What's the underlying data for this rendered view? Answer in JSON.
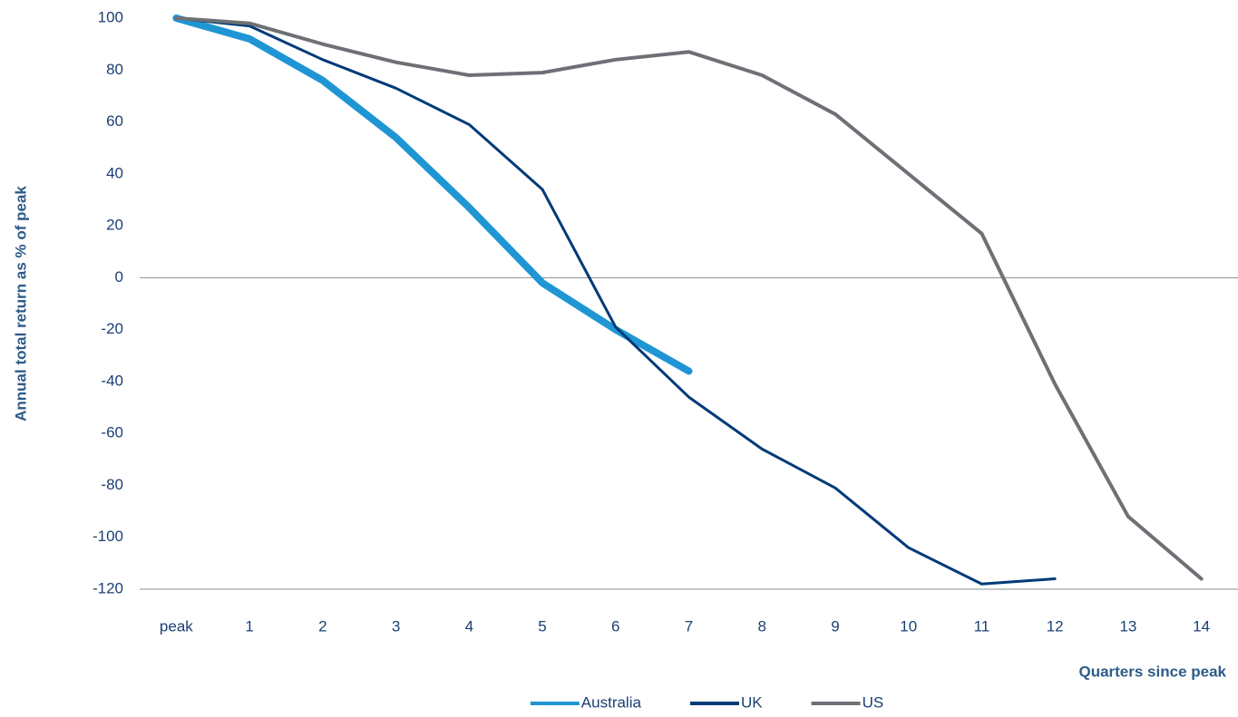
{
  "chart_data": {
    "type": "line",
    "y_axis_label": "Annual total return as % of peak",
    "x_axis_label": "Quarters since peak",
    "categories": [
      "peak",
      "1",
      "2",
      "3",
      "4",
      "5",
      "6",
      "7",
      "8",
      "9",
      "10",
      "11",
      "12",
      "13",
      "14"
    ],
    "series": [
      {
        "name": "Australia",
        "color": "#1f96d3",
        "width": 8,
        "values": [
          100,
          92,
          76,
          54,
          27,
          -2,
          -20,
          -36,
          null,
          null,
          null,
          null,
          null,
          null,
          null
        ]
      },
      {
        "name": "UK",
        "color": "#003a78",
        "width": 3,
        "values": [
          100,
          97,
          84,
          73,
          59,
          34,
          -19,
          -46,
          -66,
          -81,
          -104,
          -118,
          -116,
          null,
          null
        ]
      },
      {
        "name": "US",
        "color": "#6d7075",
        "width": 4,
        "values": [
          100,
          98,
          90,
          83,
          78,
          79,
          84,
          87,
          78,
          63,
          40,
          17,
          -41,
          -92,
          -116
        ]
      }
    ],
    "ylim": [
      -120,
      100
    ],
    "yticks": [
      -120,
      -100,
      -80,
      -60,
      -40,
      -20,
      0,
      20,
      40,
      60,
      80,
      100
    ],
    "grid": false,
    "legend": "bottom"
  }
}
